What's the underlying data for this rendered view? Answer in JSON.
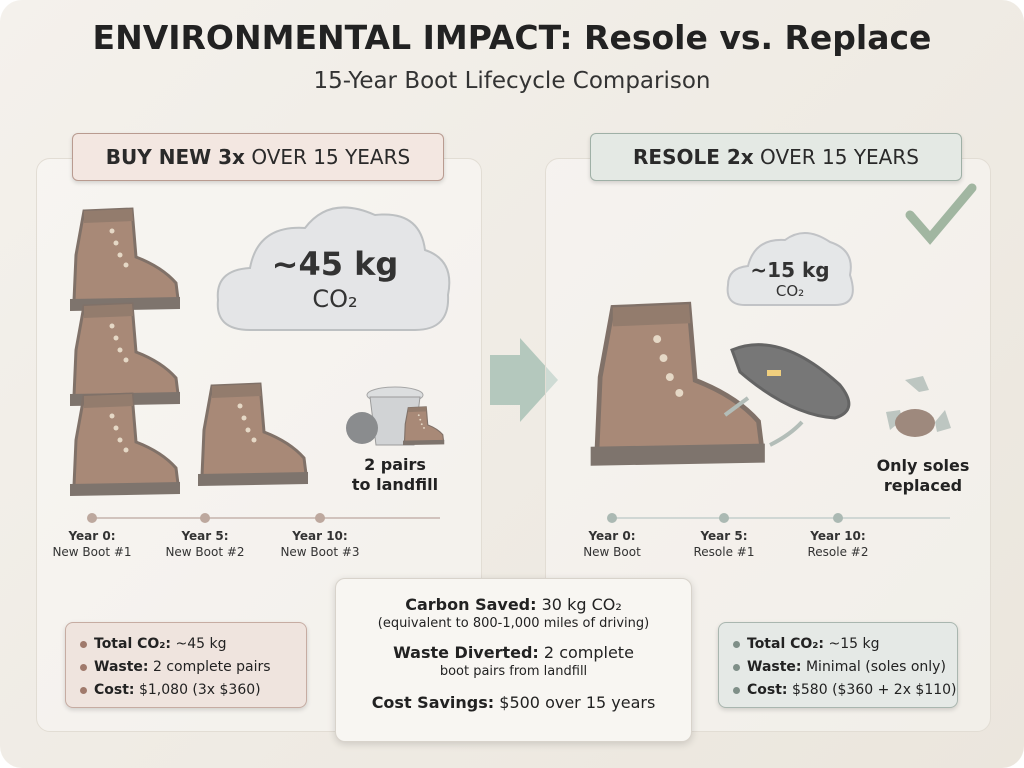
{
  "header": {
    "title": "ENVIRONMENTAL IMPACT: Resole vs. Replace",
    "subtitle": "15-Year Boot Lifecycle Comparison"
  },
  "left": {
    "heading_bold": "BUY NEW 3x",
    "heading_rest": "OVER 15 YEARS",
    "cloud_value": "~45 kg",
    "cloud_unit": "CO₂",
    "note": [
      "2 pairs",
      "to landfill"
    ],
    "timeline": [
      {
        "year": "Year 0:",
        "label": "New Boot #1"
      },
      {
        "year": "Year 5:",
        "label": "New Boot #2"
      },
      {
        "year": "Year 10:",
        "label": "New Boot #3"
      }
    ],
    "summary": [
      {
        "key": "Total CO₂:",
        "value": "~45 kg"
      },
      {
        "key": "Waste:",
        "value": "2 complete pairs"
      },
      {
        "key": "Cost:",
        "value": "$1,080 (3x $360)"
      }
    ]
  },
  "right": {
    "heading_bold": "RESOLE 2x",
    "heading_rest": "OVER 15 YEARS",
    "cloud_value": "~15 kg",
    "cloud_unit": "CO₂",
    "note": [
      "Only soles",
      "replaced"
    ],
    "timeline": [
      {
        "year": "Year 0:",
        "label": "New Boot"
      },
      {
        "year": "Year 5:",
        "label": "Resole #1"
      },
      {
        "year": "Year 10:",
        "label": "Resole #2"
      }
    ],
    "summary": [
      {
        "key": "Total CO₂:",
        "value": "~15 kg"
      },
      {
        "key": "Waste:",
        "value": "Minimal (soles only)"
      },
      {
        "key": "Cost:",
        "value": "$580 ($360 + 2x $110)"
      }
    ]
  },
  "center": {
    "carbon_key": "Carbon Saved:",
    "carbon_value": "30 kg CO₂",
    "carbon_note": "(equivalent to 800-1,000 miles of driving)",
    "waste_key": "Waste Diverted:",
    "waste_value": "2 complete",
    "waste_note": "boot pairs from landfill",
    "cost_key": "Cost Savings:",
    "cost_value": "$500 over 15 years"
  }
}
